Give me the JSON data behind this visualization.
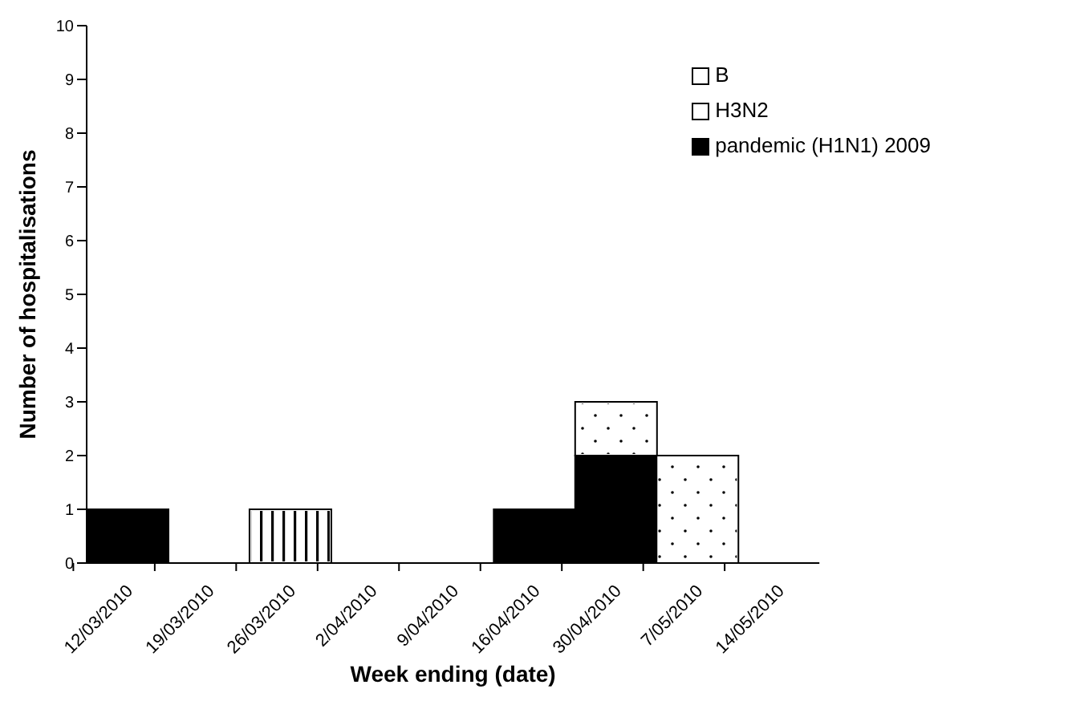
{
  "chart_data": {
    "type": "bar",
    "stacked": true,
    "xlabel": "Week ending (date)",
    "ylabel": "Number of hospitalisations",
    "categories": [
      "12/03/2010",
      "19/03/2010",
      "26/03/2010",
      "2/04/2010",
      "9/04/2010",
      "16/04/2010",
      "30/04/2010",
      "7/05/2010",
      "14/05/2010"
    ],
    "series": [
      {
        "name": "pandemic (H1N1) 2009",
        "color": "#000000",
        "values": [
          1,
          0,
          0,
          0,
          0,
          1,
          2,
          0,
          0
        ]
      },
      {
        "name": "H3N2",
        "color": "#ffffff",
        "values": [
          0,
          0,
          1,
          0,
          0,
          0,
          0,
          0,
          0
        ]
      },
      {
        "name": "B",
        "color": "#ffffff",
        "values": [
          0,
          0,
          0,
          0,
          0,
          0,
          1,
          2,
          0
        ]
      }
    ],
    "ylim": [
      0,
      10
    ],
    "yticks": [
      0,
      1,
      2,
      3,
      4,
      5,
      6,
      7,
      8,
      9,
      10
    ],
    "grid": false,
    "legend": "top right"
  }
}
